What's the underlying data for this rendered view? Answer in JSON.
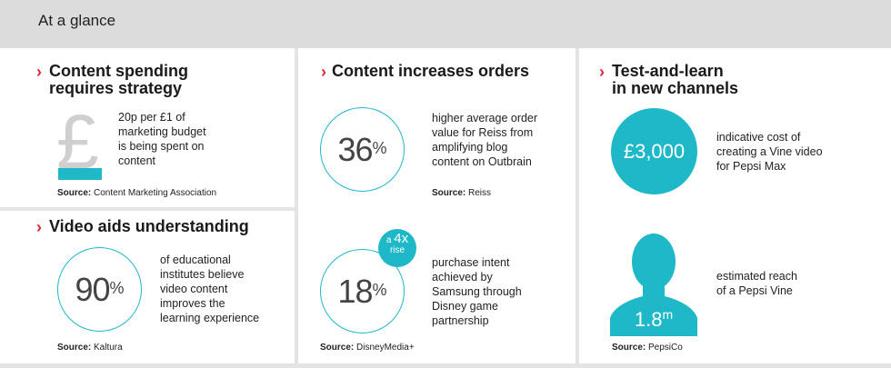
{
  "header": {
    "title": "At a glance"
  },
  "panels": {
    "spending": {
      "title_line1": "Content spending",
      "title_line2": "requires strategy",
      "icon_symbol": "£",
      "text": [
        "20p per £1 of",
        "marketing budget",
        "is being spent on",
        "content"
      ],
      "source_label": "Source:",
      "source_name": "Content Marketing Association"
    },
    "video": {
      "title": "Video aids understanding",
      "stat": "90",
      "unit": "%",
      "text": [
        "of educational",
        "institutes believe",
        "video content",
        "improves the",
        "learning experience"
      ],
      "source_label": "Source:",
      "source_name": "Kaltura"
    },
    "orders": {
      "title": "Content increases orders",
      "stat1": "36",
      "unit1": "%",
      "text1": [
        "higher average order",
        "value for Reiss from",
        "amplifying blog",
        "content on Outbrain"
      ],
      "source1_label": "Source:",
      "source1_name": "Reiss",
      "badge_a": "a",
      "badge_num": "4x",
      "badge_rise": "rise",
      "stat2": "18",
      "unit2": "%",
      "text2": [
        "purchase intent",
        "achieved by",
        "Samsung through",
        "Disney game",
        "partnership"
      ],
      "source2_label": "Source:",
      "source2_name": "DisneyMedia+"
    },
    "channels": {
      "title_line1": "Test-and-learn",
      "title_line2": "in new channels",
      "stat1": "£3,000",
      "text1": [
        "indicative cost of",
        "creating a Vine video",
        "for Pepsi Max"
      ],
      "stat2": "1.8",
      "unit2": "m",
      "text2": [
        "estimated reach",
        "of a Pepsi Vine"
      ],
      "source_label": "Source:",
      "source_name": "PepsiCo"
    }
  },
  "colors": {
    "accent": "#1eb8c9",
    "chevron": "#e0223a",
    "background": "#e4e4e4"
  },
  "icons": {
    "chevron": "chevron-right-icon",
    "pound": "pound-icon",
    "person": "person-icon"
  }
}
